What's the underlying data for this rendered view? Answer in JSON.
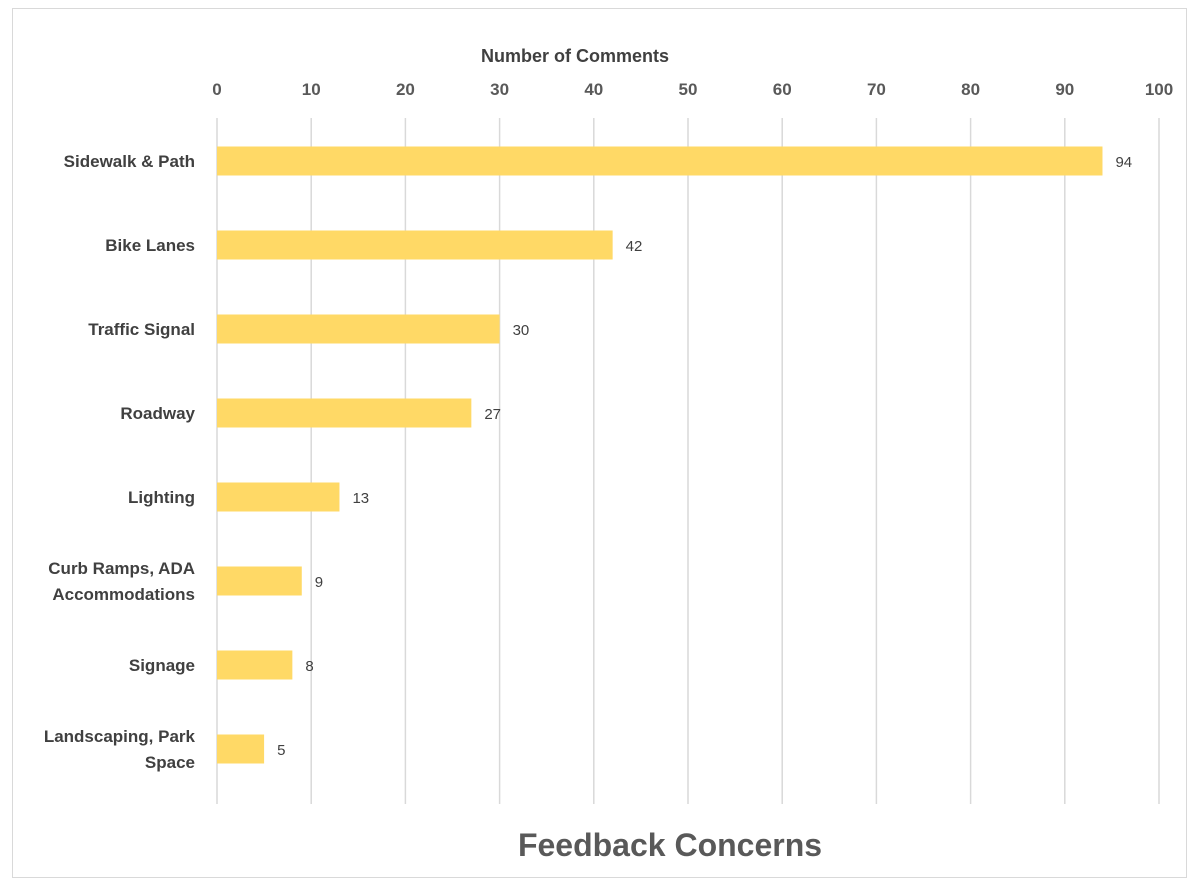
{
  "chart_data": {
    "type": "bar",
    "orientation": "horizontal",
    "title": "Feedback Concerns",
    "xlabel": "Number of Comments",
    "ylabel": "",
    "xlim": [
      0,
      100
    ],
    "x_ticks": [
      0,
      10,
      20,
      30,
      40,
      50,
      60,
      70,
      80,
      90,
      100
    ],
    "x_axis_position": "top",
    "grid": true,
    "categories": [
      [
        "Sidewalk & Path"
      ],
      [
        "Bike Lanes"
      ],
      [
        "Traffic Signal"
      ],
      [
        "Roadway"
      ],
      [
        "Lighting"
      ],
      [
        "Curb Ramps, ADA",
        "Accommodations"
      ],
      [
        "Signage"
      ],
      [
        "Landscaping, Park",
        "Space"
      ]
    ],
    "values": [
      94,
      42,
      30,
      27,
      13,
      9,
      8,
      5
    ],
    "data_labels": true,
    "colors": {
      "bar": "#FFD966",
      "grid": "#d9d9d9"
    }
  }
}
